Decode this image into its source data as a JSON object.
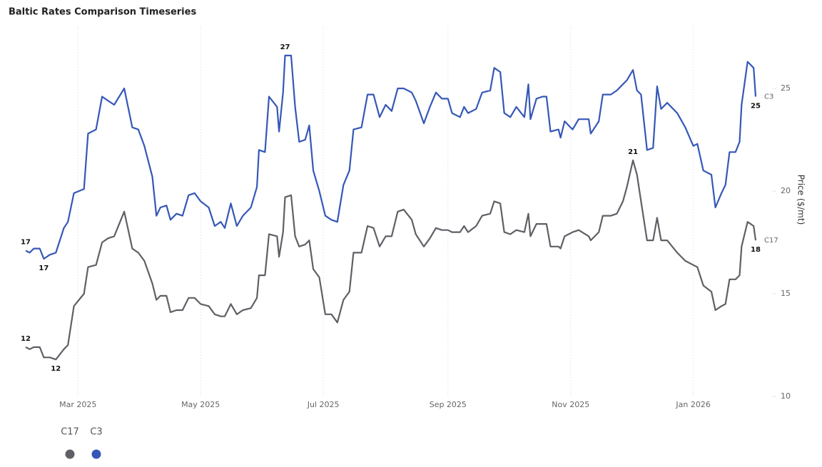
{
  "chart_data": {
    "type": "line",
    "title": "Baltic Rates Comparison Timeseries",
    "y_axis_label": "Price ($/mt)",
    "y_axis_side": "right",
    "x": [
      "2025-02-03",
      "2025-02-05",
      "2025-02-07",
      "2025-02-10",
      "2025-02-12",
      "2025-02-15",
      "2025-02-18",
      "2025-02-22",
      "2025-02-24",
      "2025-02-27",
      "2025-03-04",
      "2025-03-06",
      "2025-03-10",
      "2025-03-13",
      "2025-03-16",
      "2025-03-19",
      "2025-03-24",
      "2025-03-28",
      "2025-03-31",
      "2025-04-03",
      "2025-04-07",
      "2025-04-09",
      "2025-04-11",
      "2025-04-14",
      "2025-04-16",
      "2025-04-19",
      "2025-04-22",
      "2025-04-25",
      "2025-04-28",
      "2025-05-01",
      "2025-05-05",
      "2025-05-08",
      "2025-05-11",
      "2025-05-13",
      "2025-05-16",
      "2025-05-19",
      "2025-05-22",
      "2025-05-26",
      "2025-05-29",
      "2025-05-30",
      "2025-06-02",
      "2025-06-04",
      "2025-06-08",
      "2025-06-09",
      "2025-06-11",
      "2025-06-12",
      "2025-06-15",
      "2025-06-17",
      "2025-06-19",
      "2025-06-22",
      "2025-06-24",
      "2025-06-26",
      "2025-06-29",
      "2025-07-02",
      "2025-07-05",
      "2025-07-08",
      "2025-07-11",
      "2025-07-14",
      "2025-07-16",
      "2025-07-20",
      "2025-07-23",
      "2025-07-26",
      "2025-07-29",
      "2025-08-01",
      "2025-08-04",
      "2025-08-07",
      "2025-08-10",
      "2025-08-14",
      "2025-08-16",
      "2025-08-20",
      "2025-08-23",
      "2025-08-26",
      "2025-08-29",
      "2025-09-01",
      "2025-09-03",
      "2025-09-07",
      "2025-09-09",
      "2025-09-11",
      "2025-09-15",
      "2025-09-18",
      "2025-09-22",
      "2025-09-24",
      "2025-09-27",
      "2025-09-29",
      "2025-10-02",
      "2025-10-05",
      "2025-10-09",
      "2025-10-11",
      "2025-10-12",
      "2025-10-15",
      "2025-10-18",
      "2025-10-20",
      "2025-10-22",
      "2025-10-26",
      "2025-10-27",
      "2025-10-29",
      "2025-11-02",
      "2025-11-05",
      "2025-11-10",
      "2025-11-11",
      "2025-11-15",
      "2025-11-17",
      "2025-11-21",
      "2025-11-24",
      "2025-11-27",
      "2025-11-29",
      "2025-12-02",
      "2025-12-04",
      "2025-12-06",
      "2025-12-09",
      "2025-12-12",
      "2025-12-14",
      "2025-12-16",
      "2025-12-19",
      "2025-12-24",
      "2025-12-28",
      "2026-01-01",
      "2026-01-03",
      "2026-01-06",
      "2026-01-10",
      "2026-01-12",
      "2026-01-15",
      "2026-01-17",
      "2026-01-19",
      "2026-01-22",
      "2026-01-24",
      "2026-01-25",
      "2026-01-28",
      "2026-01-31",
      "2026-02-01"
    ],
    "series": [
      {
        "name": "C17",
        "color": "#5f6066",
        "values": [
          12.4,
          12.3,
          12.4,
          12.4,
          11.9,
          11.9,
          11.8,
          12.3,
          12.5,
          14.4,
          15.0,
          16.3,
          16.4,
          17.5,
          17.7,
          17.8,
          19.0,
          17.2,
          17.0,
          16.6,
          15.5,
          14.7,
          14.9,
          14.9,
          14.1,
          14.2,
          14.2,
          14.8,
          14.8,
          14.5,
          14.4,
          14.0,
          13.9,
          13.9,
          14.5,
          14.0,
          14.2,
          14.3,
          14.8,
          15.9,
          15.9,
          17.9,
          17.8,
          16.8,
          18.0,
          19.7,
          19.8,
          17.8,
          17.3,
          17.4,
          17.6,
          16.2,
          15.8,
          14.0,
          14.0,
          13.6,
          14.7,
          15.1,
          17.0,
          17.0,
          18.3,
          18.2,
          17.3,
          17.8,
          17.8,
          19.0,
          19.1,
          18.6,
          17.9,
          17.3,
          17.7,
          18.2,
          18.1,
          18.1,
          18.0,
          18.0,
          18.3,
          18.0,
          18.3,
          18.8,
          18.9,
          19.5,
          19.4,
          18.0,
          17.9,
          18.1,
          18.0,
          18.9,
          17.8,
          18.4,
          18.4,
          18.4,
          17.3,
          17.3,
          17.2,
          17.8,
          18.0,
          18.1,
          17.8,
          17.6,
          18.0,
          18.8,
          18.8,
          18.9,
          19.5,
          20.2,
          21.5,
          20.8,
          19.5,
          17.6,
          17.6,
          18.7,
          17.6,
          17.6,
          17.0,
          16.6,
          16.4,
          16.3,
          15.4,
          15.1,
          14.2,
          14.4,
          14.5,
          15.7,
          15.7,
          15.9,
          17.3,
          18.5,
          18.3,
          17.6
        ],
        "labels": [
          {
            "x": "2025-02-03",
            "label": 12,
            "position": "above"
          },
          {
            "x": "2025-02-18",
            "label": 12,
            "position": "below"
          },
          {
            "x": "2025-12-02",
            "label": 21,
            "position": "above"
          },
          {
            "x": "2026-02-01",
            "label": 18,
            "position": "below"
          }
        ]
      },
      {
        "name": "C3",
        "color": "#3557b7",
        "values": [
          17.1,
          17.0,
          17.2,
          17.2,
          16.7,
          16.9,
          17.0,
          18.2,
          18.5,
          19.9,
          20.1,
          22.8,
          23.0,
          24.6,
          24.4,
          24.2,
          25.0,
          23.1,
          23.0,
          22.2,
          20.7,
          18.8,
          19.2,
          19.3,
          18.6,
          18.9,
          18.8,
          19.8,
          19.9,
          19.5,
          19.2,
          18.3,
          18.5,
          18.2,
          19.4,
          18.3,
          18.8,
          19.2,
          20.2,
          22.0,
          21.9,
          24.6,
          24.1,
          22.9,
          24.8,
          26.6,
          26.6,
          24.1,
          22.4,
          22.5,
          23.2,
          21.0,
          20.0,
          18.8,
          18.6,
          18.5,
          20.3,
          21.0,
          23.0,
          23.1,
          24.7,
          24.7,
          23.6,
          24.2,
          23.9,
          25.0,
          25.0,
          24.8,
          24.4,
          23.3,
          24.1,
          24.8,
          24.5,
          24.5,
          23.8,
          23.6,
          24.1,
          23.8,
          24.0,
          24.8,
          24.9,
          26.0,
          25.8,
          23.8,
          23.6,
          24.1,
          23.6,
          25.2,
          23.5,
          24.5,
          24.6,
          24.6,
          22.9,
          23.0,
          22.6,
          23.4,
          23.0,
          23.5,
          23.5,
          22.8,
          23.4,
          24.7,
          24.7,
          24.9,
          25.2,
          25.4,
          25.9,
          24.9,
          24.7,
          22.0,
          22.1,
          25.1,
          24.0,
          24.3,
          23.8,
          23.1,
          22.2,
          22.3,
          21.0,
          20.8,
          19.2,
          19.9,
          20.3,
          21.9,
          21.9,
          22.4,
          24.2,
          26.3,
          26.0,
          24.6
        ],
        "labels": [
          {
            "x": "2025-02-03",
            "label": 17,
            "position": "above"
          },
          {
            "x": "2025-02-12",
            "label": 17,
            "position": "below"
          },
          {
            "x": "2025-06-12",
            "label": 27,
            "position": "above"
          },
          {
            "x": "2026-02-01",
            "label": 25,
            "position": "below"
          }
        ]
      }
    ],
    "xlim": [
      "2025-02-03",
      "2026-02-01"
    ],
    "xticks": [
      {
        "value": "2025-03-01",
        "label": "Mar 2025"
      },
      {
        "value": "2025-05-01",
        "label": "May 2025"
      },
      {
        "value": "2025-07-01",
        "label": "Jul 2025"
      },
      {
        "value": "2025-09-01",
        "label": "Sep 2025"
      },
      {
        "value": "2025-11-01",
        "label": "Nov 2025"
      },
      {
        "value": "2026-01-01",
        "label": "Jan 2026"
      }
    ],
    "ylim": [
      10,
      28
    ],
    "yticks": [
      10,
      15,
      20,
      25
    ],
    "grid": true,
    "legend": "bottom-left"
  }
}
